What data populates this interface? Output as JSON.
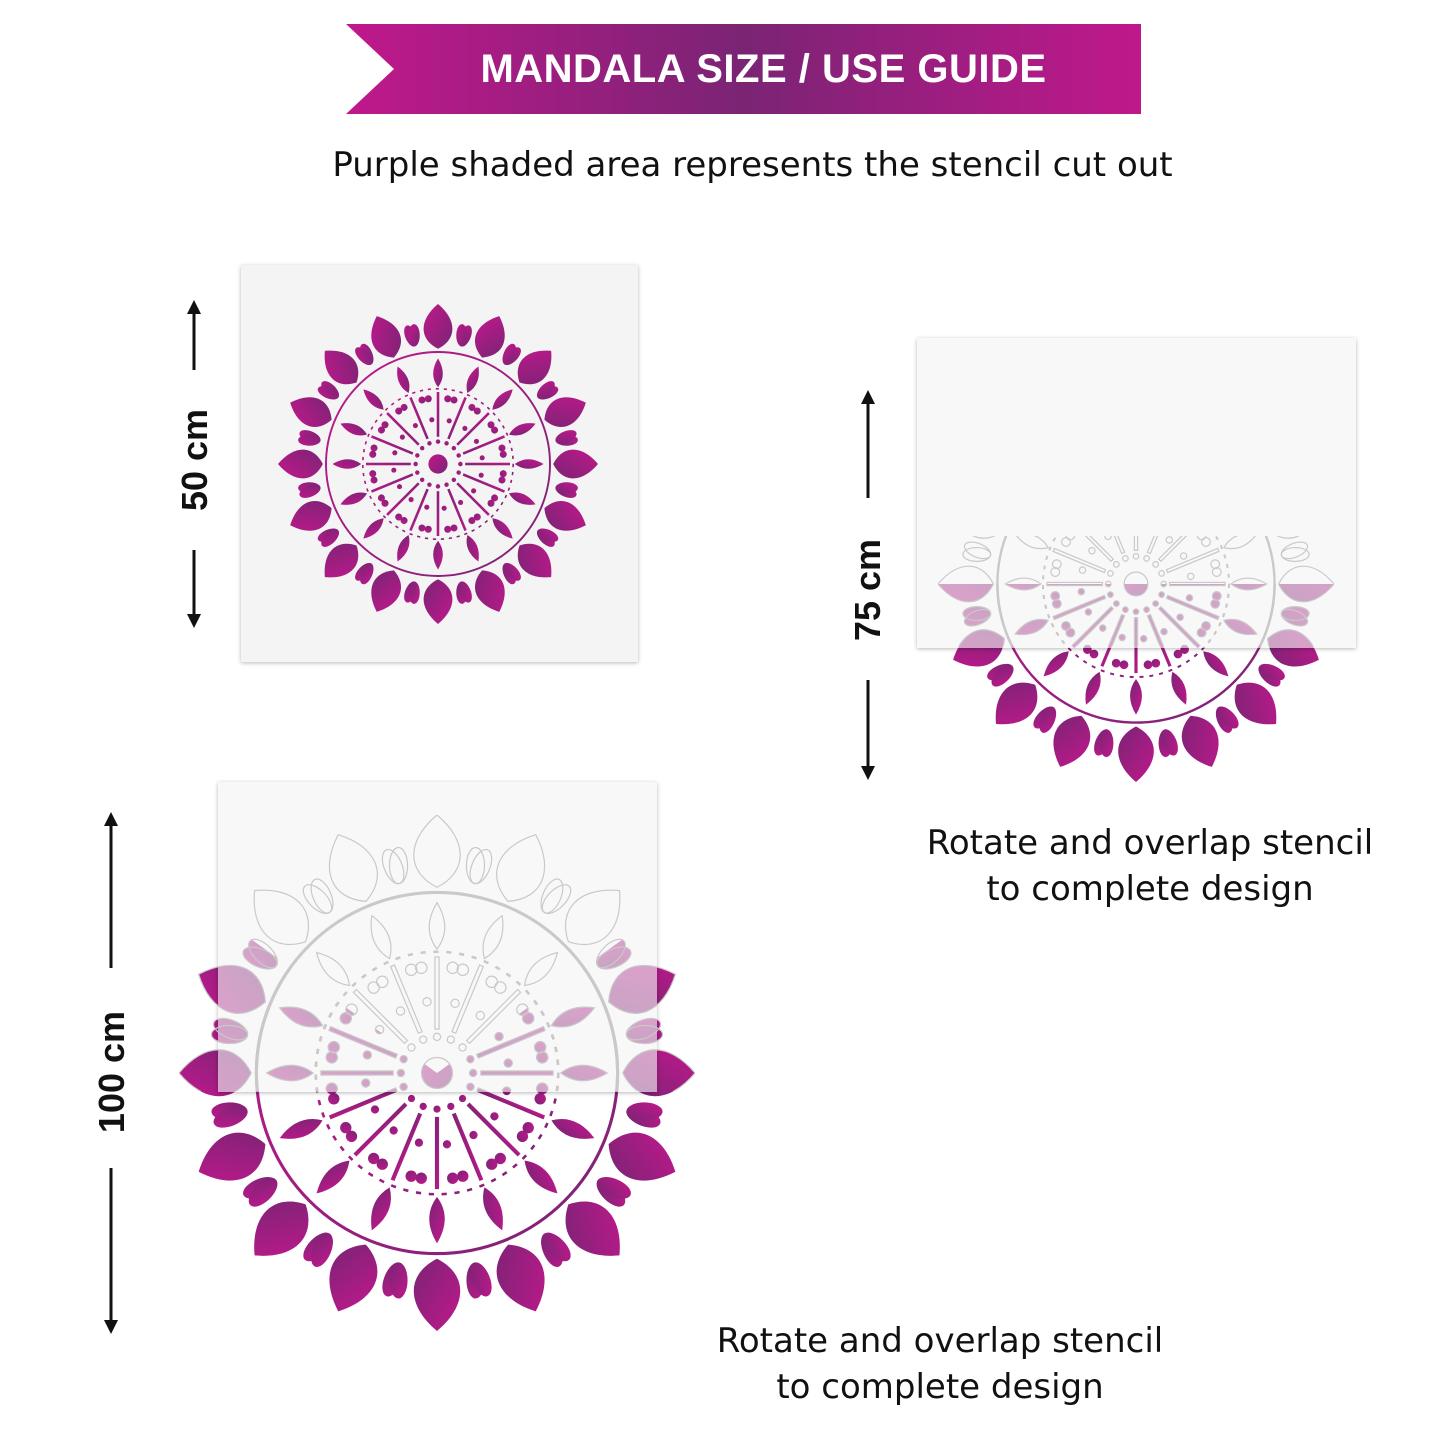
{
  "banner": {
    "title": "MANDALA SIZE / USE GUIDE"
  },
  "subtitle": "Purple shaded area represents the stencil cut out",
  "sizes": [
    {
      "dimension": "50 cm"
    },
    {
      "dimension": "75 cm",
      "caption_line1": "Rotate and overlap stencil",
      "caption_line2": "to complete design"
    },
    {
      "dimension": "100 cm",
      "caption_line1": "Rotate and overlap stencil",
      "caption_line2": "to complete design"
    }
  ],
  "colors": {
    "magenta": "#c0188c",
    "purple": "#7a2474",
    "pink_light": "#d8a4cc",
    "sheet": "#f4f4f4"
  }
}
